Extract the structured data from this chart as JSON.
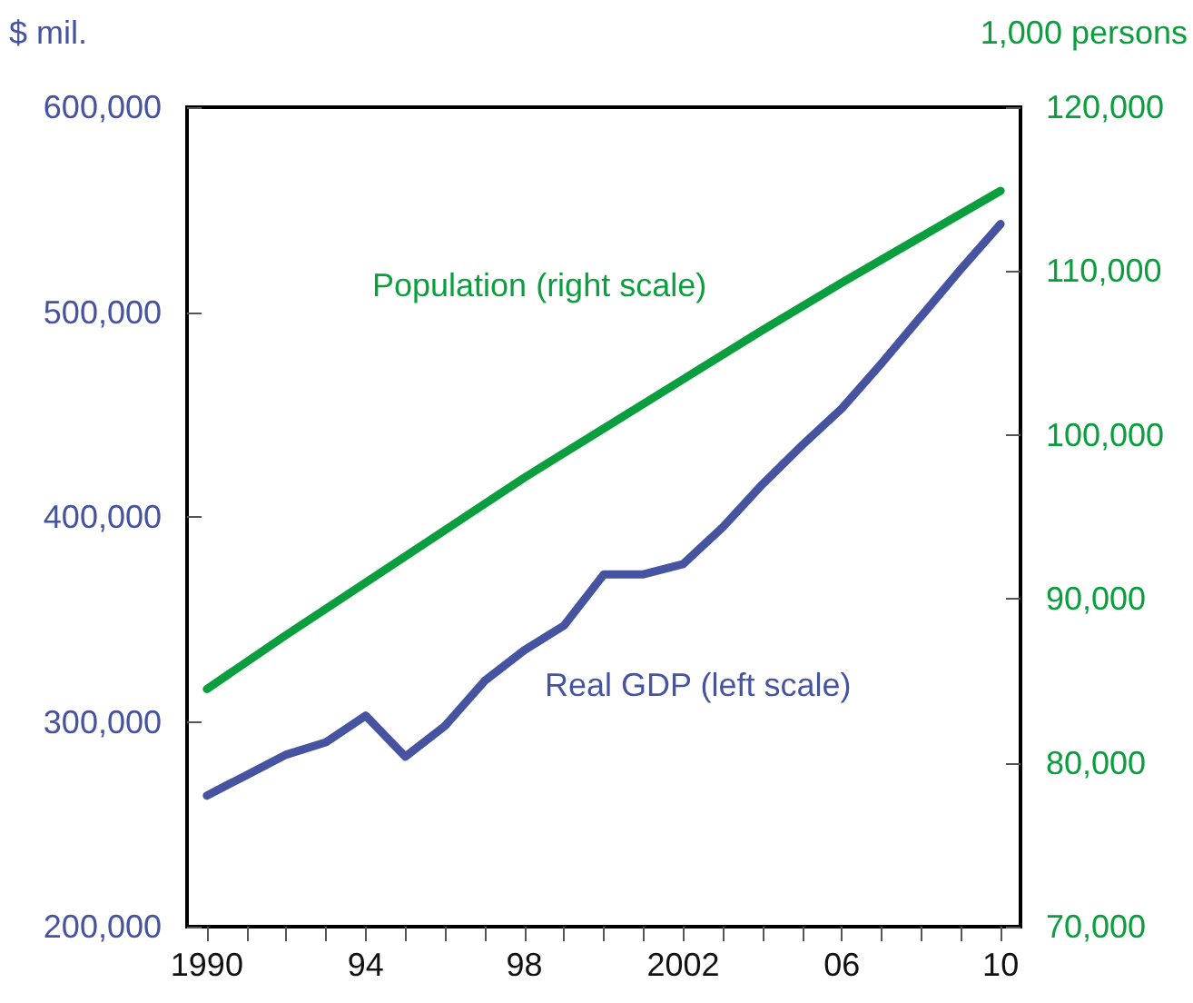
{
  "chart_data": {
    "type": "line",
    "ylabel": "$ mil.",
    "y2label": "1,000 persons",
    "xlim": [
      1989.5,
      2010.5
    ],
    "xticks": [
      {
        "value": 1990,
        "label": "1990"
      },
      {
        "value": 1991,
        "label": null
      },
      {
        "value": 1992,
        "label": null
      },
      {
        "value": 1993,
        "label": null
      },
      {
        "value": 1994,
        "label": "94"
      },
      {
        "value": 1995,
        "label": null
      },
      {
        "value": 1996,
        "label": null
      },
      {
        "value": 1997,
        "label": null
      },
      {
        "value": 1998,
        "label": "98"
      },
      {
        "value": 1999,
        "label": null
      },
      {
        "value": 2000,
        "label": null
      },
      {
        "value": 2001,
        "label": null
      },
      {
        "value": 2002,
        "label": "2002"
      },
      {
        "value": 2003,
        "label": null
      },
      {
        "value": 2004,
        "label": null
      },
      {
        "value": 2005,
        "label": null
      },
      {
        "value": 2006,
        "label": "06"
      },
      {
        "value": 2007,
        "label": null
      },
      {
        "value": 2008,
        "label": null
      },
      {
        "value": 2009,
        "label": null
      },
      {
        "value": 2010,
        "label": "10"
      }
    ],
    "ylim": [
      200000,
      600000
    ],
    "yticks": [
      {
        "value": 200000,
        "label": "200,000"
      },
      {
        "value": 300000,
        "label": "300,000"
      },
      {
        "value": 400000,
        "label": "400,000"
      },
      {
        "value": 500000,
        "label": "500,000"
      },
      {
        "value": 600000,
        "label": "600,000"
      }
    ],
    "y2lim": [
      70000,
      120000
    ],
    "y2ticks": [
      {
        "value": 70000,
        "label": "70,000"
      },
      {
        "value": 80000,
        "label": "80,000"
      },
      {
        "value": 90000,
        "label": "90,000"
      },
      {
        "value": 100000,
        "label": "100,000"
      },
      {
        "value": 110000,
        "label": "110,000"
      },
      {
        "value": 120000,
        "label": "120,000"
      }
    ],
    "grid": false,
    "legend": false,
    "marker": "none",
    "line_style": "solid",
    "series": [
      {
        "name": "Population (right scale)",
        "color": "#0a9e3e",
        "axis": "y2",
        "x": [
          1990,
          1992,
          1994,
          1996,
          1998,
          2000,
          2002,
          2004,
          2006,
          2008,
          2010
        ],
        "values": [
          84500,
          87800,
          91000,
          94200,
          97400,
          100400,
          103400,
          106400,
          109300,
          112100,
          114900
        ]
      },
      {
        "name": "Real GDP (left scale)",
        "color": "#4553a0",
        "x": [
          1990,
          1991,
          1992,
          1993,
          1994,
          1995,
          1996,
          1997,
          1998,
          1999,
          2000,
          2001,
          2002,
          2003,
          2004,
          2005,
          2006,
          2007,
          2008,
          2009,
          2010
        ],
        "values": [
          264000,
          274000,
          284000,
          290000,
          303000,
          283000,
          298000,
          320000,
          335000,
          347000,
          372000,
          372000,
          377000,
          395000,
          416000,
          435000,
          453000,
          475000,
          498000,
          521000,
          543000
        ]
      }
    ]
  }
}
